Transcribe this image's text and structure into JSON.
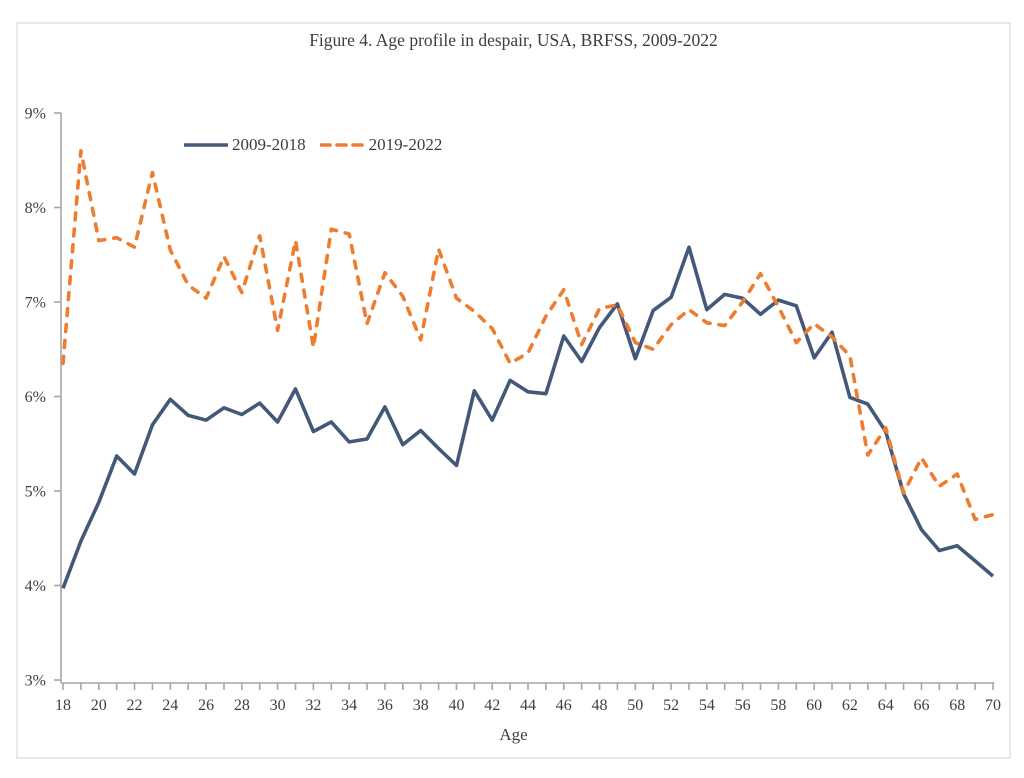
{
  "figure": {
    "title": "Figure 4. Age profile in despair, USA, BRFSS, 2009-2022"
  },
  "colors": {
    "axis": "#a6a6a6",
    "tick_label": "#3f3f3f",
    "series_2009_2018": "#44597a",
    "series_2019_2022": "#ed7d31",
    "frame_border": "#e8e8e8"
  },
  "chart_data": {
    "type": "line",
    "title": "Figure 4. Age profile in despair, USA, BRFSS, 2009-2022",
    "xlabel": "Age",
    "ylabel": "",
    "xlim": [
      18,
      70
    ],
    "ylim": [
      3,
      9
    ],
    "grid": false,
    "legend_position": "top-left-inside",
    "x_minor_tick_step": 1,
    "x_label_step": 2,
    "x_tick_labels": [
      "18",
      "20",
      "22",
      "24",
      "26",
      "28",
      "30",
      "32",
      "34",
      "36",
      "38",
      "40",
      "42",
      "44",
      "46",
      "48",
      "50",
      "52",
      "54",
      "56",
      "58",
      "60",
      "62",
      "64",
      "66",
      "68",
      "70"
    ],
    "y_tick_labels": [
      "3%",
      "4%",
      "5%",
      "6%",
      "7%",
      "8%",
      "9%"
    ],
    "y_tick_values": [
      3,
      4,
      5,
      6,
      7,
      8,
      9
    ],
    "x": [
      18,
      19,
      20,
      21,
      22,
      23,
      24,
      25,
      26,
      27,
      28,
      29,
      30,
      31,
      32,
      33,
      34,
      35,
      36,
      37,
      38,
      39,
      40,
      41,
      42,
      43,
      44,
      45,
      46,
      47,
      48,
      49,
      50,
      51,
      52,
      53,
      54,
      55,
      56,
      57,
      58,
      59,
      60,
      61,
      62,
      63,
      64,
      65,
      66,
      67,
      68,
      69,
      70
    ],
    "series": [
      {
        "name": "2009-2018",
        "style": "solid",
        "color": "#44597a",
        "values": [
          3.97,
          4.47,
          4.88,
          5.37,
          5.18,
          5.7,
          5.97,
          5.8,
          5.75,
          5.88,
          5.81,
          5.93,
          5.73,
          6.08,
          5.63,
          5.73,
          5.52,
          5.55,
          5.89,
          5.49,
          5.64,
          5.45,
          5.27,
          6.06,
          5.75,
          6.17,
          6.05,
          6.03,
          6.64,
          6.37,
          6.73,
          6.98,
          6.4,
          6.91,
          7.05,
          7.58,
          6.92,
          7.08,
          7.04,
          6.87,
          7.02,
          6.96,
          6.41,
          6.68,
          5.99,
          5.92,
          5.63,
          4.97,
          4.59,
          4.37,
          4.42,
          4.26,
          4.1
        ]
      },
      {
        "name": "2019-2022",
        "style": "dashed",
        "color": "#ed7d31",
        "values": [
          6.35,
          8.6,
          7.65,
          7.68,
          7.58,
          8.37,
          7.55,
          7.18,
          7.04,
          7.48,
          7.1,
          7.7,
          6.7,
          7.65,
          6.52,
          7.77,
          7.72,
          6.77,
          7.31,
          7.06,
          6.6,
          7.56,
          7.04,
          6.9,
          6.72,
          6.35,
          6.46,
          6.85,
          7.13,
          6.55,
          6.93,
          6.97,
          6.57,
          6.5,
          6.76,
          6.92,
          6.78,
          6.75,
          7.0,
          7.3,
          6.95,
          6.57,
          6.77,
          6.63,
          6.43,
          5.38,
          5.67,
          4.98,
          5.35,
          5.05,
          5.18,
          4.7,
          4.75
        ]
      }
    ]
  }
}
